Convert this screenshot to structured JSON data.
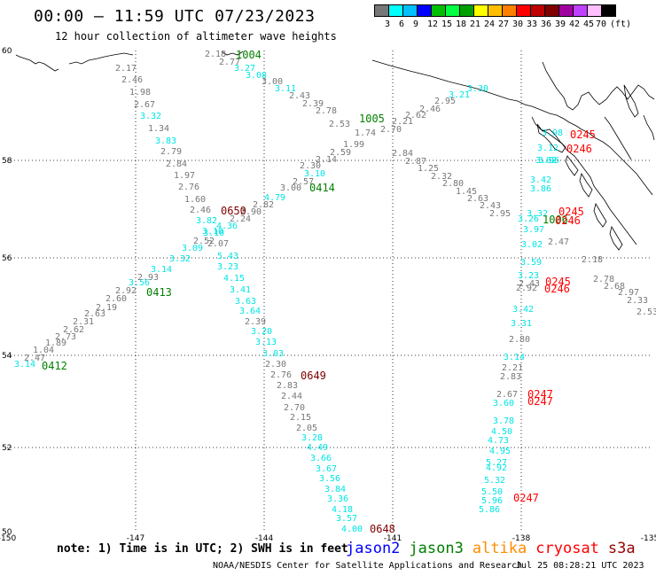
{
  "header": {
    "title": "00:00 – 11:59 UTC 07/23/2023",
    "subtitle": "12 hour collection of altimeter wave heights"
  },
  "colorbar": {
    "colors": [
      "#777777",
      "#00ffff",
      "#00bfff",
      "#0000ff",
      "#00bf00",
      "#00ff40",
      "#00a000",
      "#ffff00",
      "#ffbf00",
      "#ff8000",
      "#ff0000",
      "#bf0000",
      "#800000",
      "#a000a0",
      "#bf40ff",
      "#ffbfff",
      "#000000"
    ],
    "labels": [
      "3",
      "6",
      "9",
      "12",
      "15",
      "18",
      "21",
      "24",
      "27",
      "30",
      "33",
      "36",
      "39",
      "42",
      "45",
      "70",
      "(ft)"
    ]
  },
  "axes": {
    "x_ticks": [
      "-150",
      "-147",
      "-144",
      "-141",
      "-138",
      "-135"
    ],
    "y_ticks": [
      "60",
      "58",
      "56",
      "54",
      "52",
      "50"
    ]
  },
  "colors": {
    "gray": "#777777",
    "cyan": "#00e5e5",
    "jason3_green": "#008000",
    "s3a_darkred": "#800000",
    "cryosat_red": "#ff0000",
    "jason2_blue": "#0000ff",
    "altika_orange": "#ff8c00",
    "s3a_legend": "#990000"
  },
  "satellites": {
    "legend": [
      {
        "name": "jason2",
        "color": "#0000ff"
      },
      {
        "name": "jason3",
        "color": "#008000"
      },
      {
        "name": "altika",
        "color": "#ff8c00"
      },
      {
        "name": "cryosat",
        "color": "#ff0000"
      },
      {
        "name": "s3a",
        "color": "#990000"
      }
    ]
  },
  "tracks": {
    "pass_times": [
      {
        "t": "1004",
        "c": "jason3_green"
      },
      {
        "t": "1005",
        "c": "jason3_green"
      },
      {
        "t": "0414",
        "c": "jason3_green"
      },
      {
        "t": "0413",
        "c": "jason3_green"
      },
      {
        "t": "0412",
        "c": "jason3_green"
      },
      {
        "t": "1006",
        "c": "jason3_green"
      },
      {
        "t": "0650",
        "c": "s3a_darkred"
      },
      {
        "t": "0649",
        "c": "s3a_darkred"
      },
      {
        "t": "0648",
        "c": "s3a_darkred"
      },
      {
        "t": "0245",
        "c": "cryosat_red"
      },
      {
        "t": "0246",
        "c": "cryosat_red"
      },
      {
        "t": "0245",
        "c": "cryosat_red"
      },
      {
        "t": "0246",
        "c": "cryosat_red"
      },
      {
        "t": "0245",
        "c": "cryosat_red"
      },
      {
        "t": "0246",
        "c": "cryosat_red"
      },
      {
        "t": "0247",
        "c": "cryosat_red"
      },
      {
        "t": "0247",
        "c": "cryosat_red"
      },
      {
        "t": "0247",
        "c": "cryosat_red"
      }
    ],
    "values": [
      {
        "v": "2.18",
        "c": "gray"
      },
      {
        "v": "2.77",
        "c": "gray"
      },
      {
        "v": "3.27",
        "c": "cyan"
      },
      {
        "v": "3.08",
        "c": "cyan"
      },
      {
        "v": "3.00",
        "c": "gray"
      },
      {
        "v": "3.11",
        "c": "cyan"
      },
      {
        "v": "2.43",
        "c": "gray"
      },
      {
        "v": "2.39",
        "c": "gray"
      },
      {
        "v": "2.78",
        "c": "gray"
      },
      {
        "v": "2.53",
        "c": "gray"
      },
      {
        "v": "1.74",
        "c": "gray"
      },
      {
        "v": "1.99",
        "c": "gray"
      },
      {
        "v": "2.59",
        "c": "gray"
      },
      {
        "v": "2.14",
        "c": "gray"
      },
      {
        "v": "2.30",
        "c": "gray"
      },
      {
        "v": "3.10",
        "c": "cyan"
      },
      {
        "v": "2.57",
        "c": "gray"
      },
      {
        "v": "3.00",
        "c": "gray"
      },
      {
        "v": "4.79",
        "c": "cyan"
      },
      {
        "v": "2.82",
        "c": "gray"
      },
      {
        "v": "2.90",
        "c": "gray"
      },
      {
        "v": "2.24",
        "c": "gray"
      },
      {
        "v": "4.36",
        "c": "cyan"
      },
      {
        "v": "3.10",
        "c": "cyan"
      },
      {
        "v": "2.07",
        "c": "gray"
      },
      {
        "v": "5.43",
        "c": "cyan"
      },
      {
        "v": "3.23",
        "c": "cyan"
      },
      {
        "v": "4.15",
        "c": "cyan"
      },
      {
        "v": "3.41",
        "c": "cyan"
      },
      {
        "v": "3.63",
        "c": "cyan"
      },
      {
        "v": "3.64",
        "c": "cyan"
      },
      {
        "v": "2.39",
        "c": "gray"
      },
      {
        "v": "3.20",
        "c": "cyan"
      },
      {
        "v": "3.13",
        "c": "cyan"
      },
      {
        "v": "3.03",
        "c": "cyan"
      },
      {
        "v": "2.30",
        "c": "gray"
      },
      {
        "v": "2.76",
        "c": "gray"
      },
      {
        "v": "2.83",
        "c": "gray"
      },
      {
        "v": "2.44",
        "c": "gray"
      },
      {
        "v": "2.70",
        "c": "gray"
      },
      {
        "v": "2.15",
        "c": "gray"
      },
      {
        "v": "2.05",
        "c": "gray"
      },
      {
        "v": "3.28",
        "c": "cyan"
      },
      {
        "v": "4.49",
        "c": "cyan"
      },
      {
        "v": "3.66",
        "c": "cyan"
      },
      {
        "v": "3.67",
        "c": "cyan"
      },
      {
        "v": "3.56",
        "c": "cyan"
      },
      {
        "v": "3.84",
        "c": "cyan"
      },
      {
        "v": "3.36",
        "c": "cyan"
      },
      {
        "v": "4.18",
        "c": "cyan"
      },
      {
        "v": "3.57",
        "c": "cyan"
      },
      {
        "v": "4.00",
        "c": "cyan"
      },
      {
        "v": "2.17",
        "c": "gray"
      },
      {
        "v": "2.46",
        "c": "gray"
      },
      {
        "v": "1.98",
        "c": "gray"
      },
      {
        "v": "2.67",
        "c": "gray"
      },
      {
        "v": "3.32",
        "c": "cyan"
      },
      {
        "v": "1.34",
        "c": "gray"
      },
      {
        "v": "3.83",
        "c": "cyan"
      },
      {
        "v": "2.79",
        "c": "gray"
      },
      {
        "v": "2.84",
        "c": "gray"
      },
      {
        "v": "1.97",
        "c": "gray"
      },
      {
        "v": "2.76",
        "c": "gray"
      },
      {
        "v": "1.60",
        "c": "gray"
      },
      {
        "v": "2.46",
        "c": "gray"
      },
      {
        "v": "3.82",
        "c": "cyan"
      },
      {
        "v": "3.10",
        "c": "cyan"
      },
      {
        "v": "2.52",
        "c": "gray"
      },
      {
        "v": "3.09",
        "c": "cyan"
      },
      {
        "v": "3.32",
        "c": "cyan"
      },
      {
        "v": "3.14",
        "c": "cyan"
      },
      {
        "v": "3.56",
        "c": "cyan"
      },
      {
        "v": "2.93",
        "c": "gray"
      },
      {
        "v": "2.92",
        "c": "gray"
      },
      {
        "v": "2.60",
        "c": "gray"
      },
      {
        "v": "2.19",
        "c": "gray"
      },
      {
        "v": "2.63",
        "c": "gray"
      },
      {
        "v": "2.31",
        "c": "gray"
      },
      {
        "v": "2.62",
        "c": "gray"
      },
      {
        "v": "2.73",
        "c": "gray"
      },
      {
        "v": "1.89",
        "c": "gray"
      },
      {
        "v": "1.04",
        "c": "gray"
      },
      {
        "v": "2.47",
        "c": "gray"
      },
      {
        "v": "3.14",
        "c": "cyan"
      },
      {
        "v": "3.30",
        "c": "cyan"
      },
      {
        "v": "3.21",
        "c": "cyan"
      },
      {
        "v": "2.95",
        "c": "gray"
      },
      {
        "v": "2.46",
        "c": "gray"
      },
      {
        "v": "2.62",
        "c": "gray"
      },
      {
        "v": "2.21",
        "c": "gray"
      },
      {
        "v": "2.70",
        "c": "gray"
      },
      {
        "v": "2.84",
        "c": "gray"
      },
      {
        "v": "2.87",
        "c": "gray"
      },
      {
        "v": "1.25",
        "c": "gray"
      },
      {
        "v": "2.32",
        "c": "gray"
      },
      {
        "v": "2.80",
        "c": "gray"
      },
      {
        "v": "1.45",
        "c": "gray"
      },
      {
        "v": "2.63",
        "c": "gray"
      },
      {
        "v": "2.43",
        "c": "gray"
      },
      {
        "v": "2.95",
        "c": "gray"
      },
      {
        "v": "2.47",
        "c": "gray"
      },
      {
        "v": "2.18",
        "c": "gray"
      },
      {
        "v": "2.78",
        "c": "gray"
      },
      {
        "v": "2.68",
        "c": "gray"
      },
      {
        "v": "2.97",
        "c": "gray"
      },
      {
        "v": "2.33",
        "c": "gray"
      },
      {
        "v": "2.53",
        "c": "gray"
      },
      {
        "v": "3.98",
        "c": "cyan"
      },
      {
        "v": "3.12",
        "c": "cyan"
      },
      {
        "v": "3.02",
        "c": "cyan"
      },
      {
        "v": "3.96",
        "c": "cyan"
      },
      {
        "v": "3.42",
        "c": "cyan"
      },
      {
        "v": "3.86",
        "c": "cyan"
      },
      {
        "v": "3.32",
        "c": "cyan"
      },
      {
        "v": "3.26",
        "c": "cyan"
      },
      {
        "v": "3.97",
        "c": "cyan"
      },
      {
        "v": "3.02",
        "c": "cyan"
      },
      {
        "v": "3.59",
        "c": "cyan"
      },
      {
        "v": "3.23",
        "c": "cyan"
      },
      {
        "v": "2.43",
        "c": "gray"
      },
      {
        "v": "2.92",
        "c": "gray"
      },
      {
        "v": "3.42",
        "c": "cyan"
      },
      {
        "v": "3.31",
        "c": "cyan"
      },
      {
        "v": "2.80",
        "c": "gray"
      },
      {
        "v": "3.14",
        "c": "cyan"
      },
      {
        "v": "2.21",
        "c": "gray"
      },
      {
        "v": "2.83",
        "c": "gray"
      },
      {
        "v": "2.67",
        "c": "gray"
      },
      {
        "v": "3.60",
        "c": "cyan"
      },
      {
        "v": "3.78",
        "c": "cyan"
      },
      {
        "v": "4.50",
        "c": "cyan"
      },
      {
        "v": "4.73",
        "c": "cyan"
      },
      {
        "v": "4.95",
        "c": "cyan"
      },
      {
        "v": "5.27",
        "c": "cyan"
      },
      {
        "v": "4.92",
        "c": "cyan"
      },
      {
        "v": "5.32",
        "c": "cyan"
      },
      {
        "v": "5.50",
        "c": "cyan"
      },
      {
        "v": "5.96",
        "c": "cyan"
      },
      {
        "v": "5.86",
        "c": "cyan"
      }
    ]
  },
  "footer": {
    "note": "note: 1) Time is in UTC; 2) SWH is in feet",
    "credit": "NOAA/NESDIS Center for Satellite Applications and Research",
    "timestamp": "Jul 25 08:28:21 UTC 2023"
  }
}
